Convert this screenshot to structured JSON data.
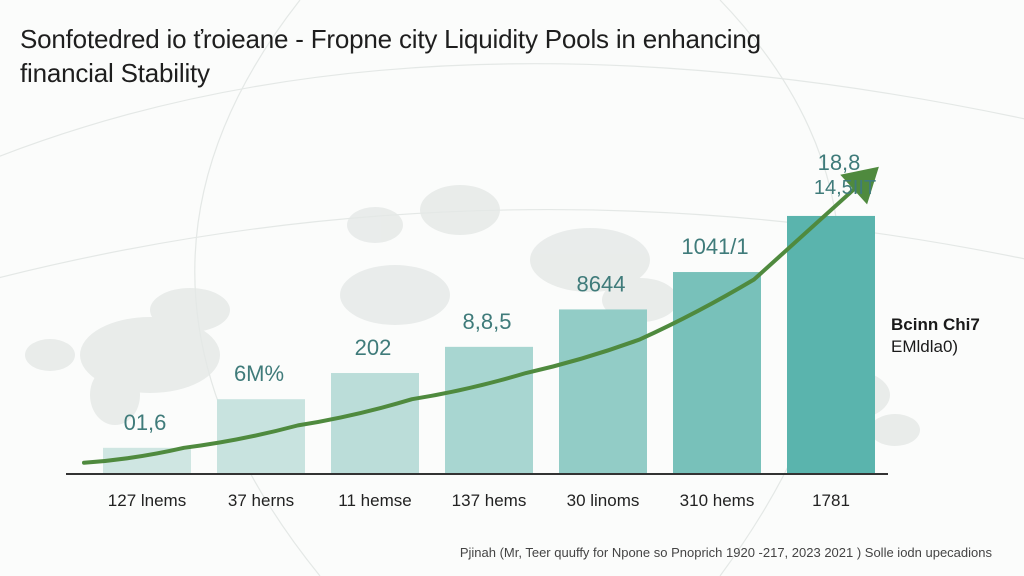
{
  "header": {
    "title_line1": "Sonfotedred io ťroieane - Fropne city Liquidity Pools in enhancing",
    "title_line2": "financial Stability"
  },
  "annotation": {
    "line1": "Bcinn Chi7",
    "line2": "EMldla0)"
  },
  "footer": {
    "source": "Pjinah (Mr, Teer quuffy for Npone so Pnoprich 1920 -217, 2023 2021 ) Solle iodn upecadions"
  },
  "colors": {
    "bar_light": "#cfe6e2",
    "bar_dark": "#5ab4ad",
    "line": "#4f8a3e",
    "label": "#3f7b7a",
    "axis": "#333333"
  },
  "chart_data": {
    "type": "bar",
    "categories": [
      "127 lnems",
      "37 herns",
      "11 hemse",
      "137 hems",
      "30 linoms",
      "310 hems",
      "1781"
    ],
    "values": [
      7,
      20,
      27,
      34,
      44,
      54,
      69
    ],
    "data_labels": [
      "01,6",
      "6M%",
      "202",
      "8,8,5",
      "8644",
      "1041/1",
      "18,8"
    ],
    "data_label_extra": [
      "",
      "",
      "",
      "",
      "",
      "",
      "14,5IIT"
    ],
    "ylim": [
      0,
      100
    ],
    "trend_line": {
      "type": "line",
      "values": [
        3,
        7,
        13,
        20,
        27,
        36,
        52,
        80
      ],
      "arrow": true
    },
    "grid": false,
    "title": "Sonfotedred io ťroieane - Fropne city Liquidity Pools in enhancing financial Stability",
    "xlabel": "",
    "ylabel": ""
  }
}
